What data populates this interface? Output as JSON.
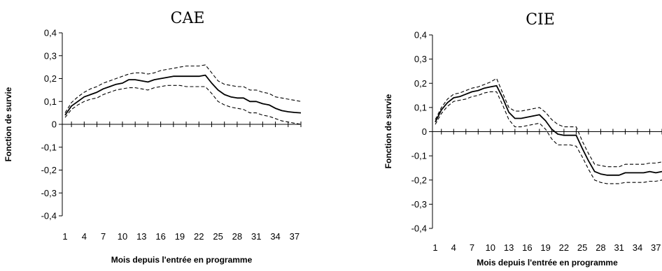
{
  "chart_data": [
    {
      "type": "line",
      "title": "CAE",
      "xlabel": "Mois depuis l'entrée en programme",
      "ylabel": "Fonction de survie",
      "ylim": [
        -0.4,
        0.4
      ],
      "xlim": [
        1,
        38
      ],
      "y_ticks": [
        0.4,
        0.3,
        0.2,
        0.1,
        0,
        -0.1,
        -0.2,
        -0.3,
        -0.4
      ],
      "y_tick_labels": [
        "0,4",
        "0,3",
        "0,2",
        "0,1",
        "0",
        "-0,1",
        "-0,2",
        "-0,3",
        "-0,4"
      ],
      "x_tick_labels": [
        "1",
        "4",
        "7",
        "10",
        "13",
        "16",
        "19",
        "22",
        "25",
        "28",
        "31",
        "34",
        "37"
      ],
      "x_tick_values": [
        1,
        4,
        7,
        10,
        13,
        16,
        19,
        22,
        25,
        28,
        31,
        34,
        37
      ],
      "grid": false,
      "x": [
        1,
        2,
        3,
        4,
        5,
        6,
        7,
        8,
        9,
        10,
        11,
        12,
        13,
        14,
        15,
        16,
        17,
        18,
        19,
        20,
        21,
        22,
        23,
        24,
        25,
        26,
        27,
        28,
        29,
        30,
        31,
        32,
        33,
        34,
        35,
        36,
        37,
        38
      ],
      "series": [
        {
          "style": "solid",
          "values": [
            0.04,
            0.08,
            0.1,
            0.12,
            0.13,
            0.14,
            0.155,
            0.165,
            0.175,
            0.18,
            0.195,
            0.195,
            0.19,
            0.185,
            0.195,
            0.2,
            0.205,
            0.21,
            0.21,
            0.21,
            0.21,
            0.21,
            0.215,
            0.18,
            0.15,
            0.13,
            0.12,
            0.115,
            0.115,
            0.1,
            0.1,
            0.09,
            0.085,
            0.07,
            0.06,
            0.055,
            0.052,
            0.05
          ]
        },
        {
          "style": "dashed",
          "values": [
            0.05,
            0.095,
            0.12,
            0.14,
            0.155,
            0.165,
            0.18,
            0.19,
            0.2,
            0.21,
            0.22,
            0.225,
            0.225,
            0.22,
            0.225,
            0.235,
            0.24,
            0.245,
            0.25,
            0.255,
            0.255,
            0.255,
            0.26,
            0.225,
            0.19,
            0.175,
            0.17,
            0.165,
            0.165,
            0.15,
            0.15,
            0.14,
            0.135,
            0.12,
            0.115,
            0.11,
            0.105,
            0.1
          ]
        },
        {
          "style": "dashed",
          "values": [
            0.03,
            0.065,
            0.085,
            0.1,
            0.11,
            0.115,
            0.13,
            0.14,
            0.15,
            0.155,
            0.16,
            0.16,
            0.155,
            0.15,
            0.16,
            0.165,
            0.17,
            0.17,
            0.17,
            0.165,
            0.165,
            0.165,
            0.165,
            0.135,
            0.1,
            0.085,
            0.075,
            0.07,
            0.065,
            0.05,
            0.05,
            0.04,
            0.035,
            0.025,
            0.015,
            0.01,
            0.005,
            0.0
          ]
        }
      ]
    },
    {
      "type": "line",
      "title": "CIE",
      "xlabel": "Mois depuis l'entrée en programme",
      "ylabel": "Fonction de survie",
      "ylim": [
        -0.4,
        0.4
      ],
      "xlim": [
        1,
        38
      ],
      "y_ticks": [
        0.4,
        0.3,
        0.2,
        0.1,
        0,
        -0.1,
        -0.2,
        -0.3,
        -0.4
      ],
      "y_tick_labels": [
        "0,4",
        "0,3",
        "0,2",
        "0,1",
        "0",
        "-0,1",
        "-0,2",
        "-0,3",
        "-0,4"
      ],
      "x_tick_labels": [
        "1",
        "4",
        "7",
        "10",
        "13",
        "16",
        "19",
        "22",
        "25",
        "28",
        "31",
        "34",
        "37"
      ],
      "x_tick_values": [
        1,
        4,
        7,
        10,
        13,
        16,
        19,
        22,
        25,
        28,
        31,
        34,
        37
      ],
      "grid": false,
      "x": [
        1,
        2,
        3,
        4,
        5,
        6,
        7,
        8,
        9,
        10,
        11,
        12,
        13,
        14,
        15,
        16,
        17,
        18,
        19,
        20,
        21,
        22,
        23,
        24,
        25,
        26,
        27,
        28,
        29,
        30,
        31,
        32,
        33,
        34,
        35,
        36,
        37,
        38
      ],
      "series": [
        {
          "style": "solid",
          "values": [
            0.04,
            0.09,
            0.12,
            0.14,
            0.145,
            0.155,
            0.165,
            0.17,
            0.18,
            0.185,
            0.19,
            0.14,
            0.08,
            0.055,
            0.055,
            0.06,
            0.065,
            0.07,
            0.045,
            0.01,
            -0.01,
            -0.015,
            -0.015,
            -0.015,
            -0.07,
            -0.12,
            -0.165,
            -0.175,
            -0.18,
            -0.18,
            -0.18,
            -0.17,
            -0.17,
            -0.17,
            -0.17,
            -0.165,
            -0.17,
            -0.165
          ]
        },
        {
          "style": "dashed",
          "values": [
            0.05,
            0.1,
            0.135,
            0.155,
            0.16,
            0.17,
            0.18,
            0.185,
            0.195,
            0.205,
            0.22,
            0.16,
            0.1,
            0.085,
            0.085,
            0.09,
            0.095,
            0.1,
            0.08,
            0.05,
            0.03,
            0.02,
            0.02,
            0.02,
            -0.04,
            -0.09,
            -0.135,
            -0.14,
            -0.145,
            -0.145,
            -0.145,
            -0.135,
            -0.135,
            -0.135,
            -0.135,
            -0.13,
            -0.13,
            -0.125
          ]
        },
        {
          "style": "dashed",
          "values": [
            0.03,
            0.075,
            0.105,
            0.125,
            0.13,
            0.135,
            0.145,
            0.15,
            0.16,
            0.165,
            0.165,
            0.11,
            0.05,
            0.02,
            0.02,
            0.025,
            0.03,
            0.035,
            0.01,
            -0.03,
            -0.055,
            -0.055,
            -0.055,
            -0.06,
            -0.105,
            -0.155,
            -0.2,
            -0.21,
            -0.215,
            -0.215,
            -0.215,
            -0.21,
            -0.21,
            -0.21,
            -0.21,
            -0.205,
            -0.205,
            -0.2
          ]
        }
      ]
    }
  ]
}
